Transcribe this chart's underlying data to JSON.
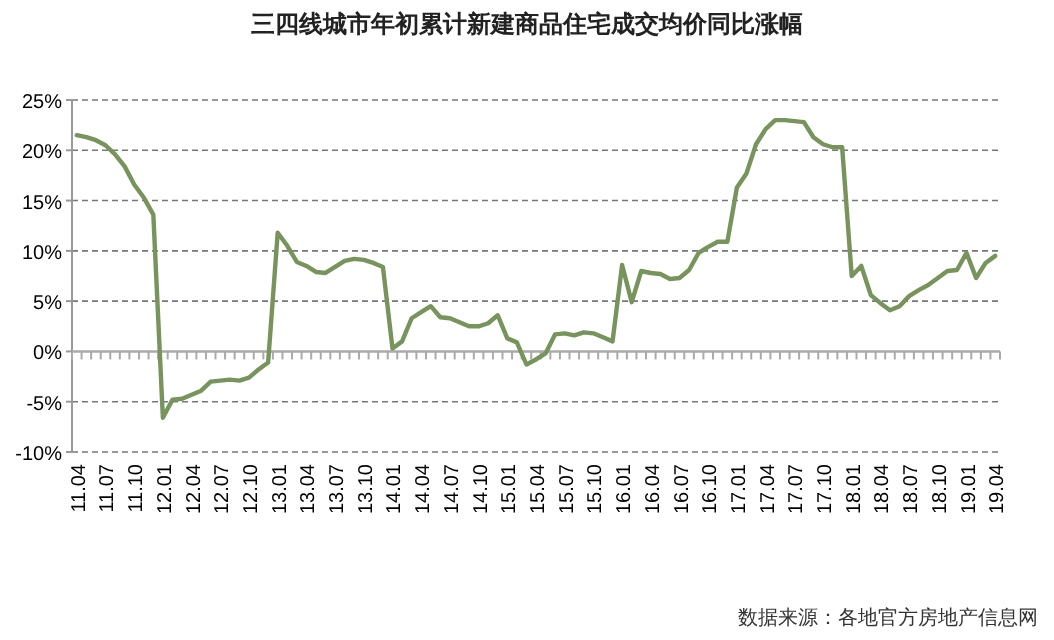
{
  "chart_data": {
    "type": "line",
    "title": "三四线城市年初累计新建商品住宅成交均价同比涨幅",
    "categories": [
      "11.04",
      null,
      null,
      "11.07",
      null,
      null,
      "11.10",
      null,
      null,
      "12.01",
      null,
      null,
      "12.04",
      null,
      null,
      "12.07",
      null,
      null,
      "12.10",
      null,
      null,
      "13.01",
      null,
      null,
      "13.04",
      null,
      null,
      "13.07",
      null,
      null,
      "13.10",
      null,
      null,
      "14.01",
      null,
      null,
      "14.04",
      null,
      null,
      "14.07",
      null,
      null,
      "14.10",
      null,
      null,
      "15.01",
      null,
      null,
      "15.04",
      null,
      null,
      "15.07",
      null,
      null,
      "15.10",
      null,
      null,
      "16.01",
      null,
      null,
      "16.04",
      null,
      null,
      "16.07",
      null,
      null,
      "16.10",
      null,
      null,
      "17.01",
      null,
      null,
      "17.04",
      null,
      null,
      "17.07",
      null,
      null,
      "17.10",
      null,
      null,
      "18.01",
      null,
      null,
      "18.04",
      null,
      null,
      "18.07",
      null,
      null,
      "18.10",
      null,
      null,
      "19.01",
      null,
      null,
      "19.04"
    ],
    "series": [
      {
        "color": "#77945c",
        "values": [
          21.5,
          21.3,
          21.0,
          20.5,
          19.6,
          18.4,
          16.6,
          15.3,
          13.6,
          -6.6,
          -4.8,
          -4.7,
          -4.3,
          -3.9,
          -3.0,
          -2.9,
          -2.8,
          -2.9,
          -2.6,
          -1.8,
          -1.1,
          11.8,
          10.5,
          8.9,
          8.5,
          7.9,
          7.8,
          8.4,
          9.0,
          9.2,
          9.1,
          8.8,
          8.4,
          0.3,
          1.0,
          3.3,
          3.9,
          4.5,
          3.4,
          3.3,
          2.9,
          2.5,
          2.5,
          2.8,
          3.6,
          1.3,
          0.9,
          -1.3,
          -0.8,
          -0.2,
          1.7,
          1.8,
          1.6,
          1.9,
          1.8,
          1.4,
          1.0,
          8.6,
          4.9,
          8.0,
          7.8,
          7.7,
          7.2,
          7.3,
          8.1,
          9.8,
          10.4,
          10.9,
          10.9,
          16.3,
          17.7,
          20.6,
          22.1,
          23.0,
          23.0,
          22.9,
          22.8,
          21.3,
          20.6,
          20.3,
          20.3,
          7.5,
          8.5,
          5.6,
          4.8,
          4.1,
          4.5,
          5.5,
          6.1,
          6.6,
          7.3,
          8.0,
          8.1,
          9.8,
          7.3,
          8.8,
          9.5
        ]
      }
    ],
    "ylim": [
      -10,
      25
    ],
    "yticks": [
      {
        "value": -10,
        "label": "-10%"
      },
      {
        "value": -5,
        "label": "-5%"
      },
      {
        "value": 0,
        "label": "0%"
      },
      {
        "value": 5,
        "label": "5%"
      },
      {
        "value": 10,
        "label": "10%"
      },
      {
        "value": 15,
        "label": "15%"
      },
      {
        "value": 20,
        "label": "20%"
      },
      {
        "value": 25,
        "label": "25%"
      }
    ],
    "grid": "y",
    "annotations": [
      "数据来源：各地官方房地产信息网"
    ]
  }
}
